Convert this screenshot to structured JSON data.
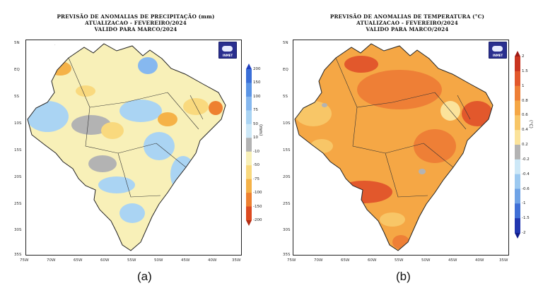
{
  "panel_a": {
    "title_line1": "PREVISÃO DE ANOMALIAS DE PRECIPITAÇÃO (mm)",
    "title_line2": "ATUALIZACAO - FEVEREIRO/2024",
    "title_line3": "VALIDO PARA MARCO/2024",
    "colorbar_unit": "(mm)",
    "colorbar_ticks": [
      "200",
      "150",
      "100",
      "75",
      "50",
      "10",
      "-10",
      "-50",
      "-75",
      "-100",
      "-150",
      "-200"
    ],
    "colorbar_colors": [
      "#1f3fbf",
      "#3a6fd8",
      "#5b95e6",
      "#86b8ef",
      "#aad4f3",
      "#cde8f7",
      "#b3b3b3",
      "#f8f0b8",
      "#f9d97e",
      "#f5b248",
      "#ee8030",
      "#dc4a20",
      "#b32d14"
    ],
    "caption": "(a)"
  },
  "panel_b": {
    "title_line1": "PREVISÃO DE ANOMALIAS DE TEMPERATURA (°C)",
    "title_line2": "ATUALIZACAO - FEVEREIRO/2024",
    "title_line3": "VALIDO PARA MARCO/2024",
    "colorbar_unit": "(°C)",
    "colorbar_ticks": [
      "2",
      "1.5",
      "1",
      "0.8",
      "0.6",
      "0.4",
      "0.2",
      "-0.2",
      "-0.4",
      "-0.6",
      "-1",
      "-1.5",
      "-2"
    ],
    "colorbar_colors": [
      "#9e1a14",
      "#c93520",
      "#e2582c",
      "#ee7f36",
      "#f5a745",
      "#f8c667",
      "#fbe39b",
      "#b3b3b3",
      "#cde8f7",
      "#9cc9f0",
      "#6fa3e6",
      "#3f6fd6",
      "#2137b0",
      "#101c8a"
    ],
    "caption": "(b)"
  },
  "lat_labels": [
    "5N",
    "EQ",
    "5S",
    "10S",
    "15S",
    "20S",
    "25S",
    "30S",
    "35S"
  ],
  "lon_labels": [
    "75W",
    "70W",
    "65W",
    "60W",
    "55W",
    "50W",
    "45W",
    "40W",
    "35W"
  ],
  "logo_text": "INMET"
}
